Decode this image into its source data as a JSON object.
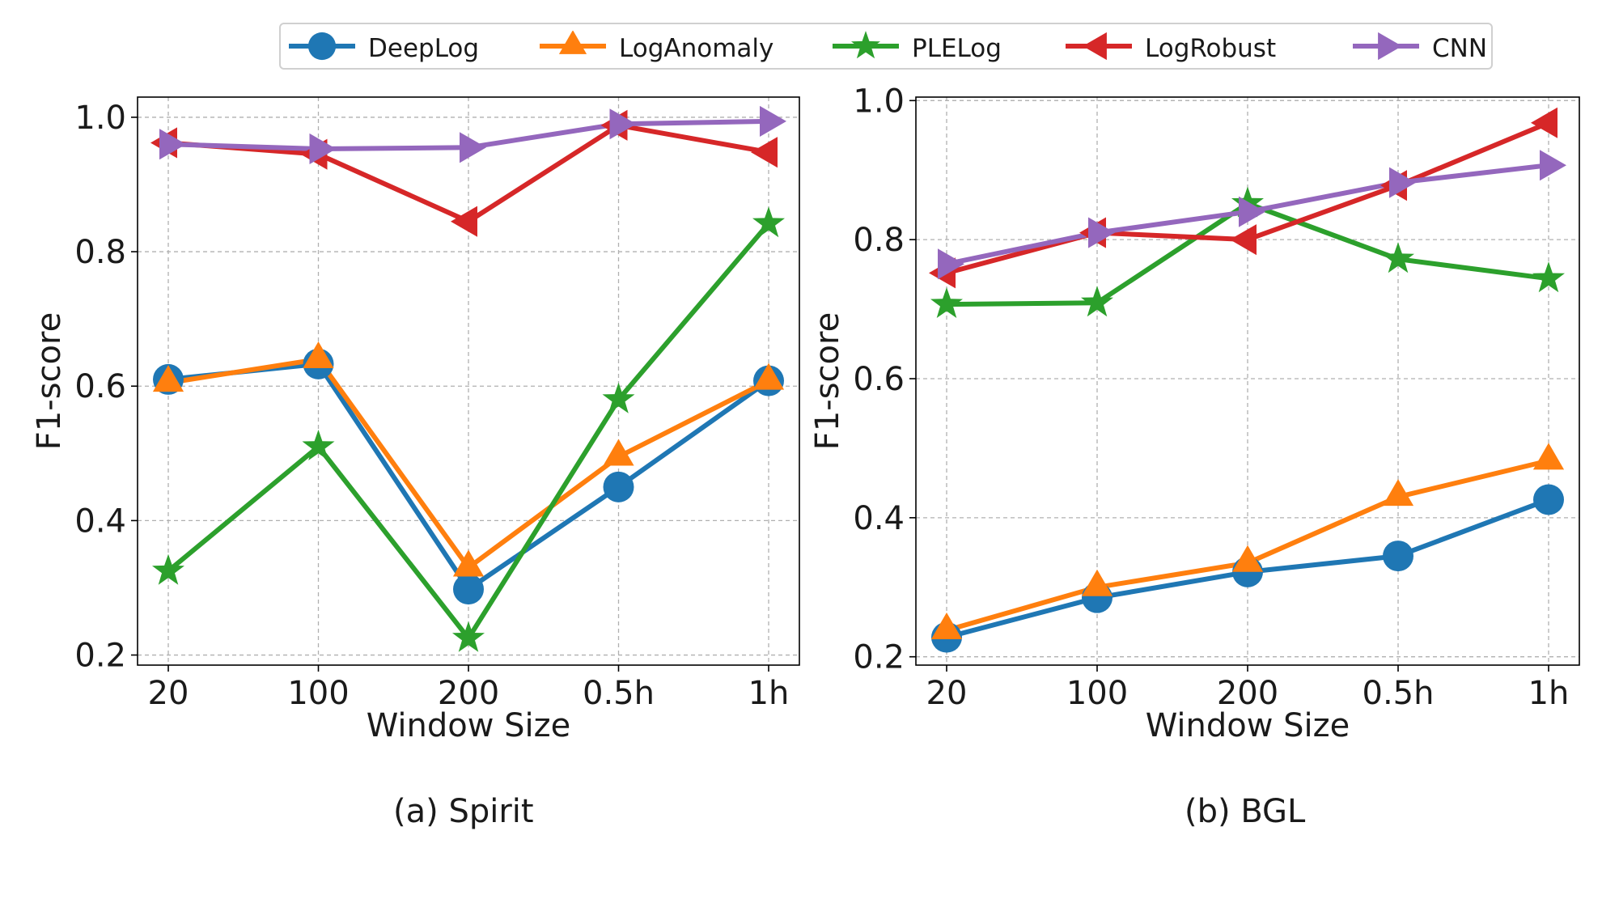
{
  "legend": [
    "DeepLog",
    "LogAnomaly",
    "PLELog",
    "LogRobust",
    "CNN"
  ],
  "colors": {
    "DeepLog": "#1f77b4",
    "LogAnomaly": "#ff7f0e",
    "PLELog": "#2ca02c",
    "LogRobust": "#d62728",
    "CNN": "#9467bd"
  },
  "markers": {
    "DeepLog": "circle",
    "LogAnomaly": "triangle-up",
    "PLELog": "star",
    "LogRobust": "triangle-left",
    "CNN": "triangle-right"
  },
  "captions": {
    "a": "(a) Spirit",
    "b": "(b) BGL"
  },
  "chart_data": [
    {
      "type": "line",
      "title": "(a) Spirit",
      "xlabel": "Window Size",
      "ylabel": "F1-score",
      "categories": [
        "20",
        "100",
        "200",
        "0.5h",
        "1h"
      ],
      "ylim": [
        0.185,
        1.03
      ],
      "yticks": [
        0.2,
        0.4,
        0.6,
        0.8,
        1.0
      ],
      "ytick_labels": [
        "0.2",
        "0.4",
        "0.6",
        "0.8",
        "1.0"
      ],
      "grid": true,
      "series": [
        {
          "name": "DeepLog",
          "values": [
            0.61,
            0.633,
            0.298,
            0.45,
            0.608
          ]
        },
        {
          "name": "LogAnomaly",
          "values": [
            0.605,
            0.64,
            0.33,
            0.495,
            0.608
          ]
        },
        {
          "name": "PLELog",
          "values": [
            0.325,
            0.51,
            0.225,
            0.58,
            0.842
          ]
        },
        {
          "name": "LogRobust",
          "values": [
            0.962,
            0.945,
            0.845,
            0.988,
            0.948
          ]
        },
        {
          "name": "CNN",
          "values": [
            0.96,
            0.953,
            0.955,
            0.99,
            0.994
          ]
        }
      ]
    },
    {
      "type": "line",
      "title": "(b) BGL",
      "xlabel": "Window Size",
      "ylabel": "F1-score",
      "categories": [
        "20",
        "100",
        "200",
        "0.5h",
        "1h"
      ],
      "ylim": [
        0.188,
        1.005
      ],
      "yticks": [
        0.2,
        0.4,
        0.6,
        0.8,
        1.0
      ],
      "ytick_labels": [
        "0.2",
        "0.4",
        "0.6",
        "0.8",
        "1.0"
      ],
      "grid": true,
      "series": [
        {
          "name": "DeepLog",
          "values": [
            0.228,
            0.285,
            0.322,
            0.345,
            0.426
          ]
        },
        {
          "name": "LogAnomaly",
          "values": [
            0.238,
            0.3,
            0.335,
            0.43,
            0.482
          ]
        },
        {
          "name": "PLELog",
          "values": [
            0.707,
            0.709,
            0.852,
            0.772,
            0.744
          ]
        },
        {
          "name": "LogRobust",
          "values": [
            0.752,
            0.81,
            0.8,
            0.878,
            0.968
          ]
        },
        {
          "name": "CNN",
          "values": [
            0.765,
            0.81,
            0.84,
            0.882,
            0.907
          ]
        }
      ]
    }
  ]
}
